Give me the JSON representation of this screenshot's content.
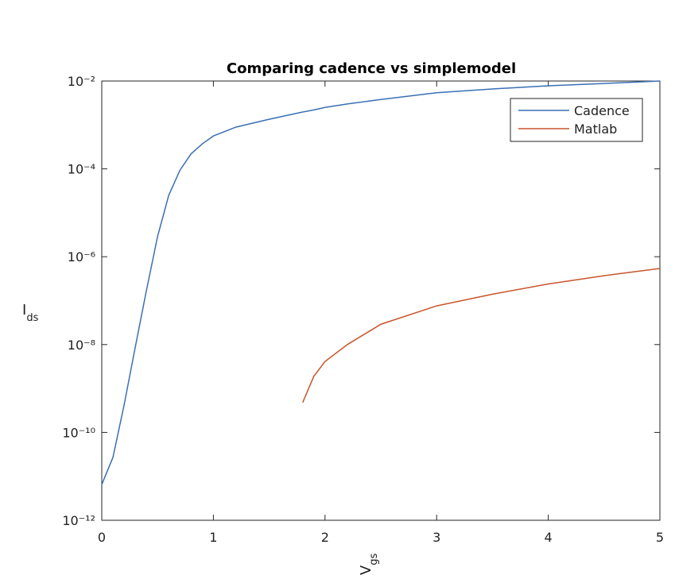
{
  "chart_data": {
    "type": "line",
    "title": "Comparing cadence vs simplemodel",
    "xlabel": "V",
    "xlabel_sub": "gs",
    "ylabel": "I",
    "ylabel_sub": "ds",
    "x": [
      0,
      0.1,
      0.2,
      0.3,
      0.4,
      0.5,
      0.6,
      0.7,
      0.8,
      0.9,
      1.0,
      1.2,
      1.5,
      1.8,
      1.9,
      2.0,
      2.2,
      2.5,
      3.0,
      3.5,
      4.0,
      4.5,
      5.0
    ],
    "series": [
      {
        "name": "Cadence",
        "color": "#3a6fb4",
        "values": [
          6.5e-12,
          2.7e-11,
          4.2e-10,
          8.7e-09,
          1.7e-07,
          2.9e-06,
          2.5e-05,
          9.3e-05,
          0.00022,
          0.00037,
          0.00056,
          0.00089,
          0.00135,
          0.00197,
          0.0022,
          0.0025,
          0.003,
          0.0038,
          0.0054,
          0.0066,
          0.0078,
          0.0088,
          0.01
        ]
      },
      {
        "name": "Matlab",
        "color": "#c8552a",
        "values": [
          null,
          null,
          null,
          null,
          null,
          null,
          null,
          null,
          null,
          null,
          null,
          null,
          null,
          4.8e-10,
          1.9e-09,
          4.1e-09,
          1e-08,
          2.9e-08,
          7.6e-08,
          1.4e-07,
          2.4e-07,
          3.7e-07,
          5.4e-07
        ]
      }
    ],
    "xlim": [
      0,
      5
    ],
    "xticks": [
      0,
      1,
      2,
      3,
      4,
      5
    ],
    "ylim": [
      1e-12,
      0.01
    ],
    "ylog": true,
    "yticks": [
      {
        "value": 1e-12,
        "label": "10⁻¹²"
      },
      {
        "value": 1e-10,
        "label": "10⁻¹⁰"
      },
      {
        "value": 1e-08,
        "label": "10⁻⁸"
      },
      {
        "value": 1e-06,
        "label": "10⁻⁶"
      },
      {
        "value": 0.0001,
        "label": "10⁻⁴"
      },
      {
        "value": 0.01,
        "label": "10⁻²"
      }
    ],
    "legend": "upper right"
  }
}
